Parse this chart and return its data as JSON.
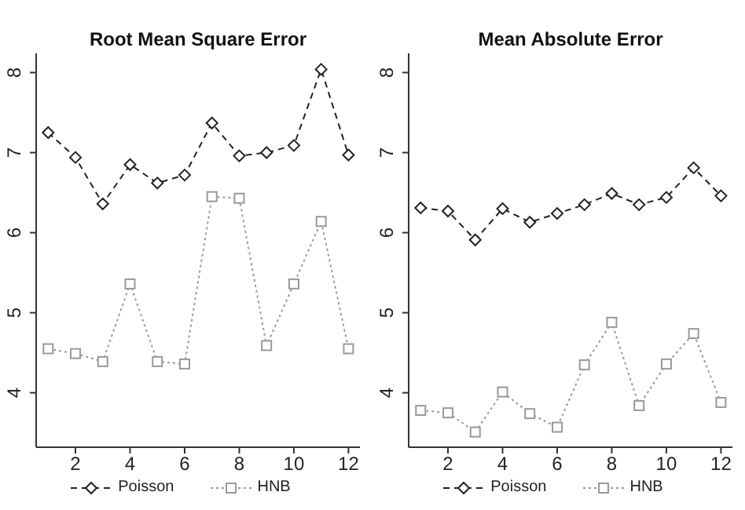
{
  "chart_data": [
    {
      "type": "line",
      "title": "Root Mean Square Error",
      "x": [
        1,
        2,
        3,
        4,
        5,
        6,
        7,
        8,
        9,
        10,
        11,
        12
      ],
      "xlim": [
        0.56,
        12.42
      ],
      "xticks": [
        2,
        4,
        6,
        8,
        10,
        12
      ],
      "ylim": [
        3.32,
        8.24
      ],
      "yticks": [
        4,
        5,
        6,
        7,
        8
      ],
      "legend": "bottom",
      "series": [
        {
          "name": "Poisson",
          "color": "#222222",
          "marker": "diamond",
          "line_style": "dashed",
          "values": [
            7.25,
            6.94,
            6.36,
            6.85,
            6.62,
            6.72,
            7.37,
            6.96,
            7.0,
            7.09,
            8.04,
            6.97
          ]
        },
        {
          "name": "HNB",
          "color": "#999999",
          "marker": "square",
          "line_style": "dotted",
          "values": [
            4.55,
            4.49,
            4.39,
            5.36,
            4.39,
            4.36,
            6.45,
            6.43,
            4.59,
            5.36,
            6.14,
            4.55
          ]
        }
      ]
    },
    {
      "type": "line",
      "title": "Mean Absolute Error",
      "x": [
        1,
        2,
        3,
        4,
        5,
        6,
        7,
        8,
        9,
        10,
        11,
        12
      ],
      "xlim": [
        0.56,
        12.42
      ],
      "xticks": [
        2,
        4,
        6,
        8,
        10,
        12
      ],
      "ylim": [
        3.32,
        8.24
      ],
      "yticks": [
        4,
        5,
        6,
        7,
        8
      ],
      "legend": "bottom",
      "series": [
        {
          "name": "Poisson",
          "color": "#222222",
          "marker": "diamond",
          "line_style": "dashed",
          "values": [
            6.31,
            6.27,
            5.91,
            6.3,
            6.13,
            6.24,
            6.35,
            6.49,
            6.35,
            6.44,
            6.81,
            6.46
          ]
        },
        {
          "name": "HNB",
          "color": "#999999",
          "marker": "square",
          "line_style": "dotted",
          "values": [
            3.78,
            3.75,
            3.51,
            4.01,
            3.74,
            3.57,
            4.35,
            4.88,
            3.84,
            4.36,
            4.74,
            3.88
          ]
        }
      ]
    }
  ]
}
